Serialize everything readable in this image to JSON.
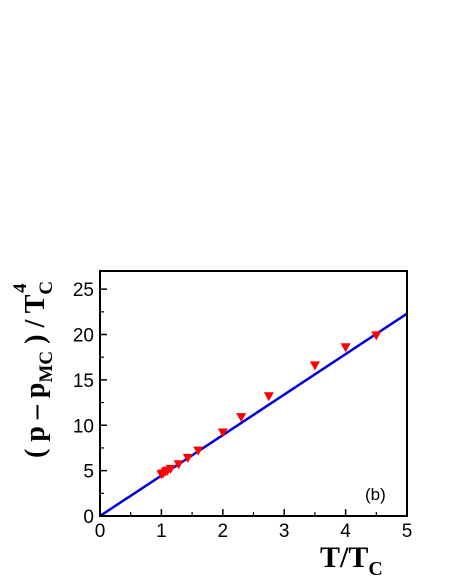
{
  "chart_data": {
    "type": "scatter",
    "panel_label": "(b)",
    "xlim": [
      0,
      5
    ],
    "ylim": [
      0,
      27
    ],
    "x_ticks": [
      0,
      1,
      2,
      3,
      4,
      5
    ],
    "y_ticks": [
      0,
      5,
      10,
      15,
      20,
      25
    ],
    "x_tick_labels": [
      "0",
      "1",
      "2",
      "3",
      "4",
      "5"
    ],
    "y_tick_labels": [
      "0",
      "5",
      "10",
      "15",
      "20",
      "25"
    ],
    "xlabel": {
      "main": "T/T",
      "sub": "C"
    },
    "ylabel": {
      "open": "( p – p",
      "sub1": "MC",
      "mid": " ) / T",
      "sub2": "C",
      "sup": "4"
    },
    "series": [
      {
        "marker": "triangle-down",
        "color": "#ff0000",
        "x": [
          1.0,
          1.03,
          1.07,
          1.1,
          1.15,
          1.28,
          1.43,
          1.6,
          2.0,
          2.3,
          2.75,
          3.5,
          4.0,
          4.5
        ],
        "y": [
          4.6,
          4.7,
          4.9,
          5.0,
          5.2,
          5.7,
          6.4,
          7.2,
          9.2,
          10.9,
          13.2,
          16.6,
          18.6,
          19.9
        ]
      },
      {
        "type": "line",
        "color": "#0000dd",
        "x": [
          0,
          5
        ],
        "y": [
          0,
          22.3
        ]
      }
    ]
  }
}
